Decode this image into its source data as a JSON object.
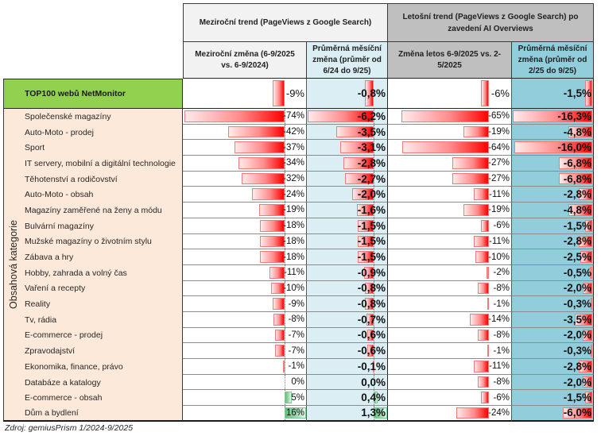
{
  "chart_data": {
    "type": "table",
    "title": "",
    "column_groups": [
      "Meziroční trend (PageViews z Google Search)",
      "Letošní trend (PageViews z Google Search) po zavedení AI Overviews"
    ],
    "columns": [
      "Meziroční změna (6-9/2025 vs. 6-9/2024)",
      "Průměrná měsíční změna (průměr od 6/24 do 9/25)",
      "Změna letos 6-9/2025 vs. 2-5/2025",
      "Průměrná měsíční změna (průměr od 2/25 do 9/25)"
    ],
    "row_axis_label": "Obsahová kategorie",
    "total_row": {
      "label": "TOP100 webů NetMonitor",
      "values": [
        "-9%",
        "-0,8%",
        "-6%",
        "-1,5%"
      ]
    },
    "rows": [
      {
        "label": "Společenské magazíny",
        "values": [
          "-74%",
          "-6,2%",
          "-65%",
          "-16,3%"
        ]
      },
      {
        "label": "Auto-Moto - prodej",
        "values": [
          "-42%",
          "-3,5%",
          "-19%",
          "-4,8%"
        ]
      },
      {
        "label": "Sport",
        "values": [
          "-37%",
          "-3,1%",
          "-64%",
          "-16,0%"
        ]
      },
      {
        "label": "IT servery, mobilní a digitální technologie",
        "values": [
          "-34%",
          "-2,8%",
          "-27%",
          "-6,8%"
        ]
      },
      {
        "label": "Těhotenství a rodičovství",
        "values": [
          "-32%",
          "-2,7%",
          "-27%",
          "-6,8%"
        ]
      },
      {
        "label": "Auto-Moto - obsah",
        "values": [
          "-24%",
          "-2,0%",
          "-11%",
          "-2,8%"
        ]
      },
      {
        "label": "Magazíny zaměřené na ženy a módu",
        "values": [
          "-19%",
          "-1,6%",
          "-19%",
          "-4,8%"
        ]
      },
      {
        "label": "Bulvární magazíny",
        "values": [
          "-18%",
          "-1,5%",
          "-6%",
          "-1,5%"
        ]
      },
      {
        "label": "Mužské magazíny o životním stylu",
        "values": [
          "-18%",
          "-1,5%",
          "-11%",
          "-2,8%"
        ]
      },
      {
        "label": "Zábava a hry",
        "values": [
          "-18%",
          "-1,5%",
          "-10%",
          "-2,5%"
        ]
      },
      {
        "label": "Hobby, zahrada a volný čas",
        "values": [
          "-11%",
          "-0,9%",
          "-2%",
          "-0,5%"
        ]
      },
      {
        "label": "Vaření a recepty",
        "values": [
          "-10%",
          "-0,8%",
          "-8%",
          "-2,0%"
        ]
      },
      {
        "label": "Reality",
        "values": [
          "-9%",
          "-0,8%",
          "-1%",
          "-0,3%"
        ]
      },
      {
        "label": "Tv, rádia",
        "values": [
          "-8%",
          "-0,7%",
          "-14%",
          "-3,5%"
        ]
      },
      {
        "label": "E-commerce - prodej",
        "values": [
          "-7%",
          "-0,6%",
          "-8%",
          "-2,0%"
        ]
      },
      {
        "label": "Zpravodajství",
        "values": [
          "-7%",
          "-0,6%",
          "-1%",
          "-0,3%"
        ]
      },
      {
        "label": "Ekonomika, finance, právo",
        "values": [
          "-1%",
          "-0,1%",
          "-11%",
          "-2,8%"
        ]
      },
      {
        "label": "Databáze a katalogy",
        "values": [
          "0%",
          "0,0%",
          "-8%",
          "-2,0%"
        ]
      },
      {
        "label": "E-commerce - obsah",
        "values": [
          "5%",
          "0,4%",
          "-6%",
          "-1,5%"
        ]
      },
      {
        "label": "Dům a bydlení",
        "values": [
          "16%",
          "1,3%",
          "-24%",
          "-6,0%"
        ]
      }
    ],
    "source": "Zdroj: gemiusPrism 1/2024-9/2025"
  },
  "colors": {
    "header_group1": "#f2f2f2",
    "header_group2": "#bfbfbf",
    "col2_fill": "#daeef3",
    "col4_fill": "#92cddc",
    "total_label_fill": "#92d050",
    "category_fill": "#fde9d9",
    "negative_bar": "#ff0000",
    "positive_bar": "#63be7b"
  }
}
